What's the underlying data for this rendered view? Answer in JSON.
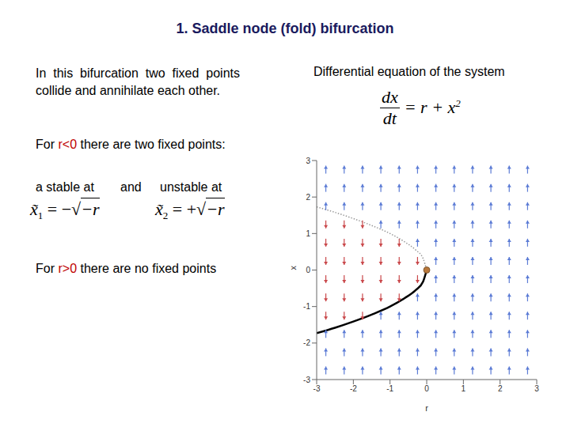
{
  "title": "1. Saddle node (fold) bifurcation",
  "intro": "In this bifurcation two fixed points collide and annihilate each other.",
  "negative_case": {
    "before": "For ",
    "condition": "r<0",
    "after": " there are two fixed points:"
  },
  "fixed_points": [
    {
      "label": "a stable at",
      "symbol": "x̃",
      "sub": "1",
      "equals": "=",
      "sign": "−",
      "root": "√",
      "radicand": "−r"
    },
    {
      "label": "unstable at",
      "symbol": "x̃",
      "sub": "2",
      "equals": "=",
      "sign": "+",
      "root": "√",
      "radicand": "−r"
    }
  ],
  "joiner": "and",
  "positive_case": {
    "before": "For ",
    "condition": "r>0",
    "after": " there are no fixed points"
  },
  "condition_color": "#c00000",
  "equation": {
    "caption": "Differential equation of the system",
    "numerator": "dx",
    "denominator": "dt",
    "rhs": "= r + x",
    "exponent": "2"
  },
  "chart_data": {
    "type": "vector_field",
    "x_label": "r",
    "y_label": "x",
    "xlim": [
      -3,
      3
    ],
    "xticks": [
      -3,
      -2,
      -1,
      0,
      1,
      2,
      3
    ],
    "ylim": [
      -3,
      3
    ],
    "yticks": [
      -3,
      -2,
      -1,
      0,
      1,
      2,
      3
    ],
    "branches": [
      {
        "line_style": "solid",
        "color": "#000000",
        "r": [
          -3,
          -2.5,
          -2,
          -1.5,
          -1,
          -0.6,
          -0.3,
          -0.1,
          0
        ],
        "x": [
          -1.73,
          -1.58,
          -1.41,
          -1.22,
          -1,
          -0.77,
          -0.55,
          -0.32,
          0
        ]
      },
      {
        "line_style": "dotted",
        "color": "#9a9a9a",
        "r": [
          -3,
          -2.5,
          -2,
          -1.5,
          -1,
          -0.6,
          -0.3,
          -0.1,
          0
        ],
        "x": [
          1.73,
          1.58,
          1.41,
          1.22,
          1,
          0.77,
          0.55,
          0.32,
          0
        ]
      }
    ],
    "bifurcation_point": {
      "r": 0,
      "x": 0,
      "color": "#b8783c"
    },
    "field": {
      "r": [
        -2.75,
        -2.25,
        -1.75,
        -1.25,
        -0.75,
        -0.25,
        0.25,
        0.75,
        1.25,
        1.75,
        2.25,
        2.75
      ],
      "x": [
        2.75,
        2.25,
        1.75,
        1.25,
        0.75,
        0.25,
        -0.25,
        -0.75,
        -1.25,
        -1.75,
        -2.25,
        -2.75
      ],
      "directions": [
        [
          1,
          1,
          1,
          1,
          1,
          1,
          1,
          1,
          1,
          1,
          1,
          1
        ],
        [
          1,
          1,
          1,
          1,
          1,
          1,
          1,
          1,
          1,
          1,
          1,
          1
        ],
        [
          1,
          1,
          1,
          1,
          1,
          1,
          1,
          1,
          1,
          1,
          1,
          1
        ],
        [
          -1,
          -1,
          -1,
          1,
          1,
          1,
          1,
          1,
          1,
          1,
          1,
          1
        ],
        [
          -1,
          -1,
          -1,
          -1,
          -1,
          1,
          1,
          1,
          1,
          1,
          1,
          1
        ],
        [
          -1,
          -1,
          -1,
          -1,
          -1,
          -1,
          1,
          1,
          1,
          1,
          1,
          1
        ],
        [
          -1,
          -1,
          -1,
          -1,
          -1,
          -1,
          1,
          1,
          1,
          1,
          1,
          1
        ],
        [
          -1,
          -1,
          -1,
          -1,
          -1,
          1,
          1,
          1,
          1,
          1,
          1,
          1
        ],
        [
          -1,
          -1,
          -1,
          1,
          1,
          1,
          1,
          1,
          1,
          1,
          1,
          1
        ],
        [
          1,
          1,
          1,
          1,
          1,
          1,
          1,
          1,
          1,
          1,
          1,
          1
        ],
        [
          1,
          1,
          1,
          1,
          1,
          1,
          1,
          1,
          1,
          1,
          1,
          1
        ],
        [
          1,
          1,
          1,
          1,
          1,
          1,
          1,
          1,
          1,
          1,
          1,
          1
        ]
      ],
      "up_color": "#5b7bd5",
      "down_color": "#c9474a"
    }
  }
}
